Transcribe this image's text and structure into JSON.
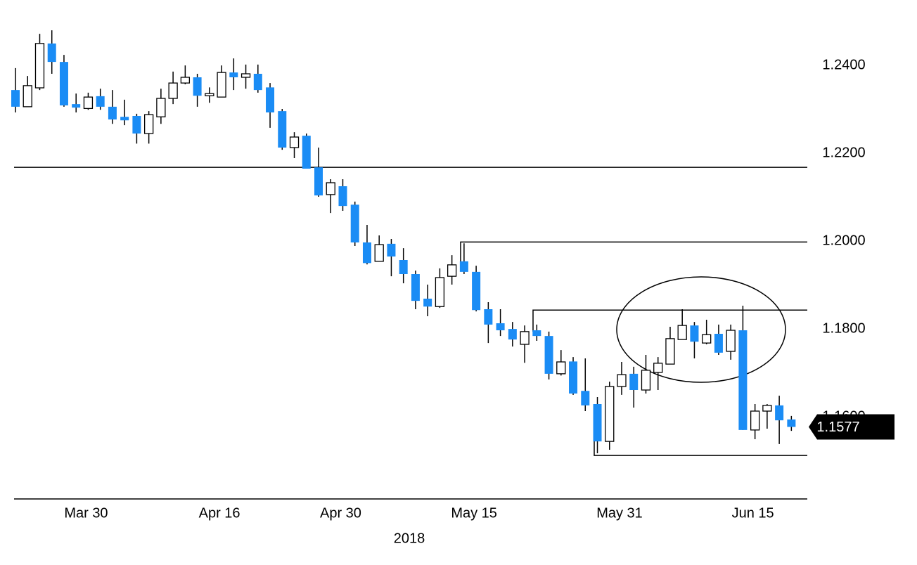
{
  "chart_data": {
    "type": "candlestick",
    "xlabel": "2018",
    "categories": [
      null,
      null,
      null,
      null,
      null,
      null,
      "Mar 30",
      null,
      null,
      null,
      null,
      null,
      null,
      null,
      null,
      null,
      null,
      "Apr 16",
      null,
      null,
      null,
      null,
      null,
      null,
      null,
      null,
      null,
      "Apr 30",
      null,
      null,
      null,
      null,
      null,
      null,
      null,
      null,
      null,
      null,
      "May 15",
      null,
      null,
      null,
      null,
      null,
      null,
      null,
      null,
      null,
      null,
      null,
      "May 31",
      null,
      null,
      null,
      null,
      null,
      null,
      null,
      null,
      null,
      null,
      "Jun 15",
      null,
      null,
      null
    ],
    "open": [
      1.2344,
      1.2306,
      1.2349,
      1.245,
      1.2408,
      1.2312,
      1.2302,
      1.233,
      1.2306,
      1.2283,
      1.2285,
      1.2245,
      1.2283,
      1.2325,
      1.236,
      1.2373,
      1.2331,
      1.2328,
      1.2384,
      1.2373,
      1.2381,
      1.235,
      1.2296,
      1.2213,
      1.224,
      1.2168,
      1.2106,
      1.2125,
      1.2083,
      1.1997,
      1.1954,
      1.1994,
      1.1957,
      1.1925,
      1.1869,
      1.1851,
      1.192,
      1.1954,
      1.193,
      1.1845,
      1.1813,
      1.18,
      1.1765,
      1.1797,
      1.1784,
      1.1698,
      1.1726,
      1.1659,
      1.1629,
      1.1544,
      1.1669,
      1.1698,
      1.1661,
      1.1701,
      1.172,
      1.1776,
      1.1808,
      1.1768,
      1.1789,
      1.1749,
      1.1797,
      1.157,
      1.1613,
      1.1626,
      1.1594
    ],
    "high": [
      1.2394,
      1.2376,
      1.2472,
      1.248,
      1.2424,
      1.2336,
      1.2338,
      1.2347,
      1.2344,
      1.2322,
      1.229,
      1.2296,
      1.2347,
      1.2386,
      1.24,
      1.2381,
      1.235,
      1.24,
      1.2416,
      1.2402,
      1.2402,
      1.236,
      1.2301,
      1.2248,
      1.2245,
      1.2213,
      1.2141,
      1.2141,
      1.209,
      1.2037,
      1.2013,
      1.2005,
      1.1984,
      1.1933,
      1.1901,
      1.1938,
      1.1968,
      1.1995,
      1.1944,
      1.1861,
      1.1845,
      1.1816,
      1.1808,
      1.181,
      1.1794,
      1.1752,
      1.1736,
      1.1733,
      1.1645,
      1.168,
      1.1725,
      1.1714,
      1.1741,
      1.1736,
      1.1805,
      1.1845,
      1.1816,
      1.1821,
      1.181,
      1.181,
      1.1853,
      1.1629,
      1.1629,
      1.1648,
      1.1602
    ],
    "low": [
      1.2293,
      1.2306,
      1.2344,
      1.2381,
      1.2306,
      1.2293,
      1.2299,
      1.2299,
      1.2267,
      1.2264,
      1.2222,
      1.2222,
      1.2267,
      1.2312,
      1.2357,
      1.2306,
      1.2315,
      1.2328,
      1.2344,
      1.2347,
      1.2338,
      1.2258,
      1.2208,
      1.2189,
      1.2165,
      1.2101,
      1.2064,
      1.2069,
      1.1989,
      1.1947,
      1.1954,
      1.192,
      1.1904,
      1.1845,
      1.1829,
      1.1848,
      1.1901,
      1.1925,
      1.184,
      1.1768,
      1.1784,
      1.176,
      1.1723,
      1.1773,
      1.1685,
      1.1694,
      1.165,
      1.1613,
      1.1517,
      1.1525,
      1.165,
      1.1621,
      1.1653,
      1.1661,
      1.172,
      1.1776,
      1.1733,
      1.1765,
      1.1741,
      1.173,
      1.157,
      1.1549,
      1.1573,
      1.1538,
      1.1568
    ],
    "close": [
      1.2306,
      1.2354,
      1.245,
      1.2408,
      1.2309,
      1.2304,
      1.2328,
      1.2306,
      1.2277,
      1.2275,
      1.2245,
      1.2288,
      1.2325,
      1.236,
      1.2373,
      1.2331,
      1.2336,
      1.2384,
      1.2373,
      1.2381,
      1.2344,
      1.2293,
      1.2213,
      1.2237,
      1.2165,
      1.2104,
      1.2133,
      1.208,
      1.1997,
      1.195,
      1.1992,
      1.1965,
      1.1925,
      1.1864,
      1.1851,
      1.1917,
      1.1946,
      1.193,
      1.1843,
      1.181,
      1.1797,
      1.1776,
      1.1794,
      1.1784,
      1.1698,
      1.1725,
      1.1653,
      1.1626,
      1.1544,
      1.1669,
      1.1696,
      1.1661,
      1.1706,
      1.1722,
      1.1778,
      1.1808,
      1.1771,
      1.1787,
      1.1746,
      1.1797,
      1.157,
      1.1613,
      1.1626,
      1.1592,
      1.1577
    ],
    "up_color": "#ffffff",
    "down_color": "#1a8cf5",
    "levels": [
      1.2168,
      1.1998,
      1.1843,
      1.1512
    ],
    "last_price": 1.1577,
    "ylim": [
      1.1413,
      1.2549
    ],
    "yticks": [
      {
        "value": 1.16,
        "label": "1.1600"
      },
      {
        "value": 1.18,
        "label": "1.1800"
      },
      {
        "value": 1.2,
        "label": "1.2000"
      },
      {
        "value": 1.22,
        "label": "1.2200"
      },
      {
        "value": 1.24,
        "label": "1.2400"
      }
    ],
    "grid": false
  }
}
